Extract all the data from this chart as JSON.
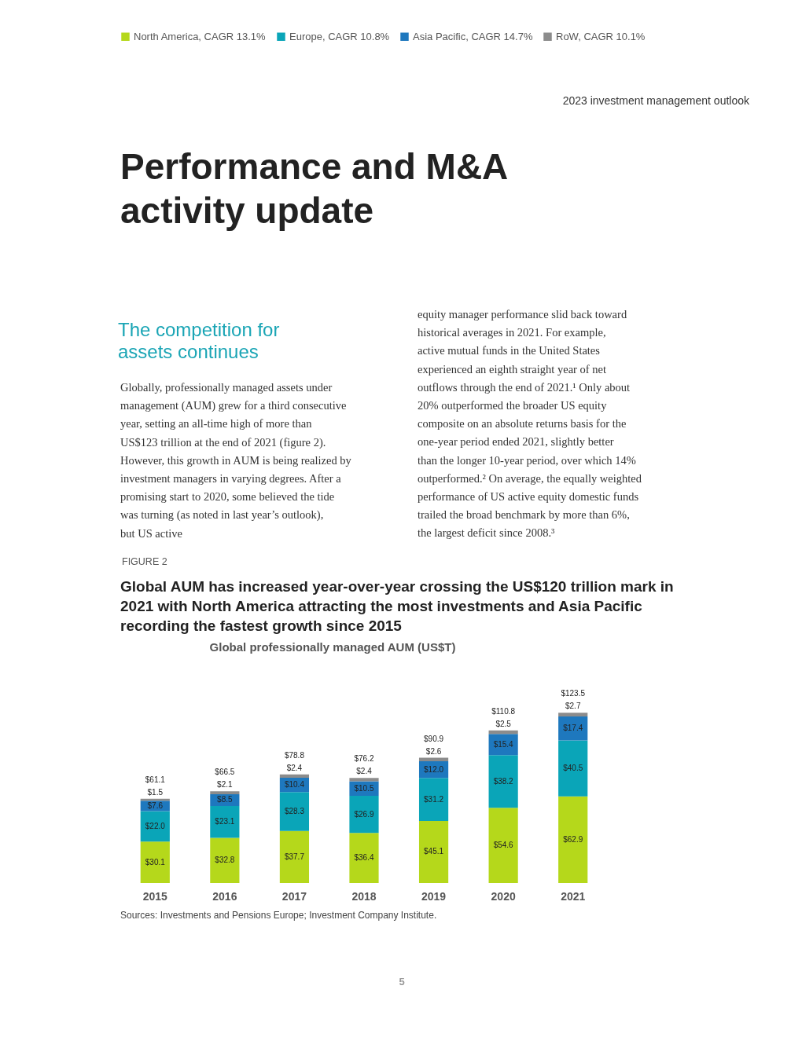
{
  "chart_data": {
    "type": "bar",
    "stacked": true,
    "title": "Global AUM has increased year-over-year crossing the US$120 trillion mark in 2021 with North America attracting the most investments and Asia Pacific recording the fastest growth since 2015",
    "subtitle": "Global professionally managed AUM (US$T)",
    "categories": [
      "2015",
      "2016",
      "2017",
      "2018",
      "2019",
      "2020",
      "2021"
    ],
    "series": [
      {
        "name": "North America, CAGR 13.1%",
        "color": "#b5d81b",
        "values": [
          30.1,
          32.8,
          37.7,
          36.4,
          45.1,
          54.6,
          62.9
        ],
        "value_labels": [
          "$30.1",
          "$32.8",
          "$37.7",
          "$36.4",
          "$45.1",
          "$54.6",
          "$62.9"
        ]
      },
      {
        "name": "Europe, CAGR 10.8%",
        "color": "#0aa5b8",
        "values": [
          22.0,
          23.1,
          28.3,
          26.9,
          31.2,
          38.2,
          40.5
        ],
        "value_labels": [
          "$22.0",
          "$23.1",
          "$28.3",
          "$26.9",
          "$31.2",
          "$38.2",
          "$40.5"
        ]
      },
      {
        "name": "Asia Pacific, CAGR 14.7%",
        "color": "#1e78be",
        "values": [
          7.6,
          8.5,
          10.4,
          10.5,
          12.0,
          15.4,
          17.4
        ],
        "value_labels": [
          "$7.6",
          "$8.5",
          "$10.4",
          "$10.5",
          "$12.0",
          "$15.4",
          "$17.4"
        ]
      },
      {
        "name": "RoW, CAGR 10.1%",
        "color": "#8c8c8c",
        "values": [
          1.5,
          2.1,
          2.4,
          2.4,
          2.6,
          2.5,
          2.7
        ],
        "value_labels": [
          "$1.5",
          "$2.1",
          "$2.4",
          "$2.4",
          "$2.6",
          "$2.5",
          "$2.7"
        ]
      }
    ],
    "totals": [
      "$61.1",
      "$66.5",
      "$78.8",
      "$76.2",
      "$90.9",
      "$110.8",
      "$123.5"
    ],
    "legend": "top left",
    "grid": false,
    "tick_labels": "x",
    "annotations": [
      "2023 investment management outlook",
      "Performance and M&A activity update",
      "The competition for assets continues",
      "Globally, professionally managed assets under management (AUM) grew for a third consecutive year, setting an all-time high of more than US$123 trillion at the end of 2021 (figure 2). However, this growth in AUM is being realized by investment managers in varying degrees. After a promising start to 2020, some believed the tide was turning (as noted in last year’s outlook), but US active",
      "equity manager performance slid back toward historical averages in 2021. For example, active mutual funds in the United States experienced an eighth straight year of net outflows through the end of 2021.¹ Only about 20% outperformed the broader US equity composite on an absolute returns basis for the one-year period ended 2021, slightly better than the longer 10-year period, over which 14% outperformed.² On average, the equally weighted performance of US active equity domestic funds trailed the broad benchmark by more than 6%, the largest deficit since 2008.³",
      "FIGURE 2",
      "Sources: Investments and Pensions Europe; Investment Company Institute.",
      "5"
    ]
  }
}
